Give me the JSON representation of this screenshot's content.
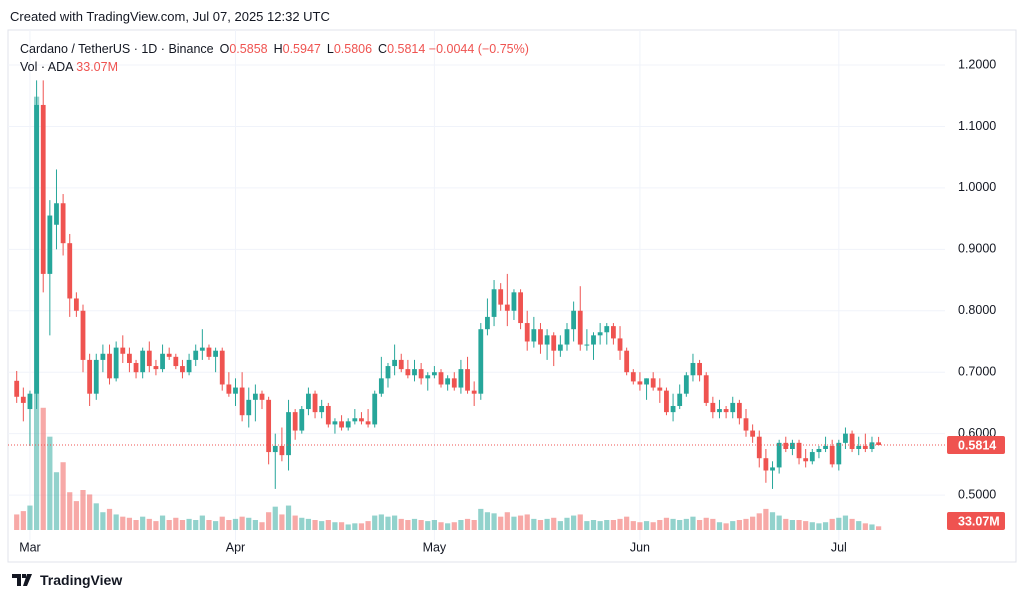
{
  "header": {
    "caption": "Created with TradingView.com, Jul 07, 2025 12:32 UTC",
    "brand": "TradingView"
  },
  "chart_data": {
    "type": "candlestick",
    "legend": {
      "symbol": "Cardano / TetherUS · 1D · Binance",
      "ohlc": [
        [
          "O",
          "0.5858"
        ],
        [
          "H",
          "0.5947"
        ],
        [
          "L",
          "0.5806"
        ],
        [
          "C",
          "0.5814"
        ]
      ],
      "change": "−0.0044 (−0.75%)",
      "volume_name": "Vol · ADA",
      "volume_value": "33.07M"
    },
    "up_color": "#26a69a",
    "down_color": "#ef5350",
    "grid": true,
    "ylim": [
      0.435,
      1.257
    ],
    "yticks": [
      {
        "value": 0.5,
        "label": "0.5000"
      },
      {
        "value": 0.6,
        "label": "0.6000"
      },
      {
        "value": 0.7,
        "label": "0.7000"
      },
      {
        "value": 0.8,
        "label": "0.8000"
      },
      {
        "value": 0.9,
        "label": "0.9000"
      },
      {
        "value": 1.0,
        "label": "1.0000"
      },
      {
        "value": 1.1,
        "label": "1.1000"
      },
      {
        "value": 1.2,
        "label": "1.2000"
      }
    ],
    "y2lim": [
      0,
      4500000000
    ],
    "categories": [
      null,
      null,
      "Mar",
      null,
      null,
      null,
      null,
      null,
      null,
      null,
      null,
      null,
      null,
      null,
      null,
      null,
      null,
      null,
      null,
      null,
      null,
      null,
      null,
      null,
      null,
      null,
      null,
      null,
      null,
      null,
      null,
      null,
      null,
      "Apr",
      null,
      null,
      null,
      null,
      null,
      null,
      null,
      null,
      null,
      null,
      null,
      null,
      null,
      null,
      null,
      null,
      null,
      null,
      null,
      null,
      null,
      null,
      null,
      null,
      null,
      null,
      null,
      null,
      null,
      "May",
      null,
      null,
      null,
      null,
      null,
      null,
      null,
      null,
      null,
      null,
      null,
      null,
      null,
      null,
      null,
      null,
      null,
      null,
      null,
      null,
      null,
      null,
      null,
      null,
      null,
      null,
      null,
      null,
      null,
      null,
      "Jun",
      null,
      null,
      null,
      null,
      null,
      null,
      null,
      null,
      null,
      null,
      null,
      null,
      null,
      null,
      null,
      null,
      null,
      null,
      null,
      null,
      null,
      null,
      null,
      null,
      null,
      null,
      null,
      null,
      null,
      "Jul",
      null,
      null,
      null,
      null,
      null,
      null
    ],
    "open": [
      0.686,
      0.66,
      0.64,
      0.665,
      1.135,
      0.86,
      0.94,
      0.975,
      0.91,
      0.82,
      0.8,
      0.72,
      0.665,
      0.72,
      0.73,
      0.69,
      0.74,
      0.73,
      0.715,
      0.7,
      0.735,
      0.71,
      0.705,
      0.73,
      0.725,
      0.71,
      0.7,
      0.72,
      0.735,
      0.74,
      0.725,
      0.735,
      0.68,
      0.665,
      0.675,
      0.63,
      0.655,
      0.665,
      0.655,
      0.57,
      0.58,
      0.565,
      0.635,
      0.605,
      0.64,
      0.665,
      0.635,
      0.645,
      0.615,
      0.62,
      0.61,
      0.62,
      0.625,
      0.62,
      0.615,
      0.665,
      0.69,
      0.71,
      0.72,
      0.705,
      0.695,
      0.705,
      0.69,
      0.695,
      0.7,
      0.68,
      0.69,
      0.675,
      0.705,
      0.67,
      0.665,
      0.77,
      0.79,
      0.835,
      0.81,
      0.8,
      0.83,
      0.78,
      0.75,
      0.77,
      0.745,
      0.76,
      0.735,
      0.745,
      0.77,
      0.8,
      0.745,
      0.745,
      0.76,
      0.765,
      0.775,
      0.755,
      0.735,
      0.7,
      0.685,
      0.68,
      0.69,
      0.675,
      0.67,
      0.635,
      0.645,
      0.665,
      0.695,
      0.715,
      0.695,
      0.65,
      0.635,
      0.64,
      0.635,
      0.65,
      0.625,
      0.605,
      0.595,
      0.56,
      0.54,
      0.545,
      0.585,
      0.575,
      0.585,
      0.56,
      0.555,
      0.57,
      0.575,
      0.58,
      0.55,
      0.585,
      0.6,
      0.575,
      0.58,
      0.575,
      0.5858
    ],
    "high": [
      0.702,
      0.675,
      0.67,
      1.175,
      1.175,
      0.98,
      1.03,
      0.99,
      0.925,
      0.83,
      0.81,
      0.73,
      0.73,
      0.745,
      0.745,
      0.75,
      0.76,
      0.74,
      0.72,
      0.74,
      0.75,
      0.72,
      0.745,
      0.74,
      0.73,
      0.72,
      0.73,
      0.745,
      0.77,
      0.745,
      0.74,
      0.74,
      0.7,
      0.69,
      0.7,
      0.675,
      0.68,
      0.67,
      0.66,
      0.6,
      0.61,
      0.655,
      0.64,
      0.645,
      0.675,
      0.67,
      0.655,
      0.65,
      0.625,
      0.63,
      0.625,
      0.64,
      0.635,
      0.64,
      0.67,
      0.725,
      0.715,
      0.745,
      0.73,
      0.72,
      0.72,
      0.715,
      0.7,
      0.71,
      0.705,
      0.695,
      0.7,
      0.72,
      0.725,
      0.685,
      0.78,
      0.82,
      0.85,
      0.845,
      0.86,
      0.835,
      0.835,
      0.8,
      0.79,
      0.78,
      0.77,
      0.765,
      0.76,
      0.78,
      0.815,
      0.84,
      0.77,
      0.765,
      0.78,
      0.78,
      0.78,
      0.775,
      0.74,
      0.705,
      0.7,
      0.69,
      0.7,
      0.69,
      0.675,
      0.665,
      0.68,
      0.7,
      0.73,
      0.72,
      0.7,
      0.66,
      0.655,
      0.645,
      0.66,
      0.655,
      0.64,
      0.615,
      0.605,
      0.575,
      0.555,
      0.59,
      0.595,
      0.59,
      0.59,
      0.575,
      0.575,
      0.58,
      0.595,
      0.59,
      0.59,
      0.61,
      0.605,
      0.595,
      0.6,
      0.595,
      0.5947
    ],
    "low": [
      0.65,
      0.62,
      0.58,
      0.64,
      0.83,
      0.76,
      0.9,
      0.89,
      0.79,
      0.79,
      0.7,
      0.645,
      0.655,
      0.7,
      0.68,
      0.685,
      0.715,
      0.7,
      0.69,
      0.69,
      0.7,
      0.695,
      0.7,
      0.72,
      0.705,
      0.69,
      0.695,
      0.71,
      0.72,
      0.72,
      0.7,
      0.67,
      0.66,
      0.645,
      0.62,
      0.61,
      0.62,
      0.64,
      0.55,
      0.51,
      0.555,
      0.54,
      0.59,
      0.6,
      0.63,
      0.625,
      0.625,
      0.61,
      0.6,
      0.605,
      0.605,
      0.615,
      0.615,
      0.61,
      0.61,
      0.66,
      0.675,
      0.695,
      0.7,
      0.69,
      0.685,
      0.68,
      0.67,
      0.69,
      0.675,
      0.67,
      0.67,
      0.665,
      0.665,
      0.645,
      0.655,
      0.76,
      0.775,
      0.8,
      0.775,
      0.785,
      0.77,
      0.735,
      0.74,
      0.73,
      0.72,
      0.71,
      0.725,
      0.735,
      0.75,
      0.735,
      0.735,
      0.72,
      0.745,
      0.745,
      0.745,
      0.72,
      0.695,
      0.68,
      0.67,
      0.655,
      0.67,
      0.65,
      0.63,
      0.62,
      0.64,
      0.66,
      0.685,
      0.685,
      0.645,
      0.625,
      0.625,
      0.625,
      0.625,
      0.615,
      0.595,
      0.585,
      0.545,
      0.52,
      0.51,
      0.535,
      0.57,
      0.565,
      0.55,
      0.545,
      0.55,
      0.56,
      0.57,
      0.545,
      0.54,
      0.575,
      0.57,
      0.565,
      0.57,
      0.57,
      0.5806
    ],
    "close": [
      0.66,
      0.65,
      0.665,
      1.135,
      0.86,
      0.955,
      0.975,
      0.91,
      0.82,
      0.8,
      0.72,
      0.665,
      0.72,
      0.73,
      0.69,
      0.74,
      0.73,
      0.715,
      0.7,
      0.735,
      0.71,
      0.705,
      0.73,
      0.725,
      0.71,
      0.7,
      0.72,
      0.735,
      0.74,
      0.725,
      0.735,
      0.68,
      0.665,
      0.675,
      0.63,
      0.655,
      0.665,
      0.655,
      0.57,
      0.58,
      0.565,
      0.635,
      0.605,
      0.64,
      0.665,
      0.635,
      0.645,
      0.615,
      0.62,
      0.61,
      0.62,
      0.625,
      0.62,
      0.615,
      0.665,
      0.69,
      0.71,
      0.72,
      0.705,
      0.695,
      0.705,
      0.69,
      0.695,
      0.7,
      0.68,
      0.69,
      0.675,
      0.705,
      0.67,
      0.665,
      0.77,
      0.79,
      0.835,
      0.81,
      0.8,
      0.83,
      0.78,
      0.75,
      0.77,
      0.745,
      0.76,
      0.735,
      0.745,
      0.77,
      0.8,
      0.745,
      0.745,
      0.76,
      0.765,
      0.775,
      0.755,
      0.735,
      0.7,
      0.685,
      0.68,
      0.69,
      0.675,
      0.67,
      0.635,
      0.645,
      0.665,
      0.695,
      0.715,
      0.695,
      0.65,
      0.635,
      0.64,
      0.635,
      0.65,
      0.625,
      0.605,
      0.595,
      0.56,
      0.54,
      0.545,
      0.585,
      0.575,
      0.585,
      0.56,
      0.555,
      0.57,
      0.575,
      0.58,
      0.55,
      0.585,
      0.6,
      0.575,
      0.58,
      0.575,
      0.5858,
      0.5814
    ],
    "volume": [
      140000000.0,
      170000000.0,
      220000000.0,
      3900000000.0,
      1100000000.0,
      840000000.0,
      520000000.0,
      610000000.0,
      340000000.0,
      260000000.0,
      360000000.0,
      320000000.0,
      240000000.0,
      160000000.0,
      190000000.0,
      140000000.0,
      120000000.0,
      110000000.0,
      90000000.0,
      120000000.0,
      100000000.0,
      80000000.0,
      130000000.0,
      90000000.0,
      110000000.0,
      90000000.0,
      100000000.0,
      90000000.0,
      130000000.0,
      90000000.0,
      80000000.0,
      120000000.0,
      90000000.0,
      100000000.0,
      120000000.0,
      110000000.0,
      90000000.0,
      70000000.0,
      160000000.0,
      210000000.0,
      140000000.0,
      220000000.0,
      130000000.0,
      110000000.0,
      100000000.0,
      90000000.0,
      80000000.0,
      90000000.0,
      70000000.0,
      70000000.0,
      50000000.0,
      60000000.0,
      60000000.0,
      80000000.0,
      130000000.0,
      140000000.0,
      120000000.0,
      130000000.0,
      100000000.0,
      90000000.0,
      100000000.0,
      90000000.0,
      80000000.0,
      90000000.0,
      70000000.0,
      60000000.0,
      70000000.0,
      90000000.0,
      100000000.0,
      90000000.0,
      190000000.0,
      160000000.0,
      150000000.0,
      120000000.0,
      160000000.0,
      120000000.0,
      130000000.0,
      140000000.0,
      100000000.0,
      90000000.0,
      100000000.0,
      110000000.0,
      80000000.0,
      110000000.0,
      130000000.0,
      140000000.0,
      80000000.0,
      90000000.0,
      80000000.0,
      90000000.0,
      90000000.0,
      100000000.0,
      120000000.0,
      80000000.0,
      70000000.0,
      80000000.0,
      70000000.0,
      90000000.0,
      110000000.0,
      100000000.0,
      90000000.0,
      100000000.0,
      120000000.0,
      90000000.0,
      110000000.0,
      100000000.0,
      70000000.0,
      60000000.0,
      80000000.0,
      90000000.0,
      100000000.0,
      120000000.0,
      150000000.0,
      190000000.0,
      160000000.0,
      130000000.0,
      100000000.0,
      90000000.0,
      90000000.0,
      80000000.0,
      70000000.0,
      60000000.0,
      70000000.0,
      100000000.0,
      110000000.0,
      130000000.0,
      100000000.0,
      80000000.0,
      60000000.0,
      50000000.0,
      33070000
    ]
  }
}
